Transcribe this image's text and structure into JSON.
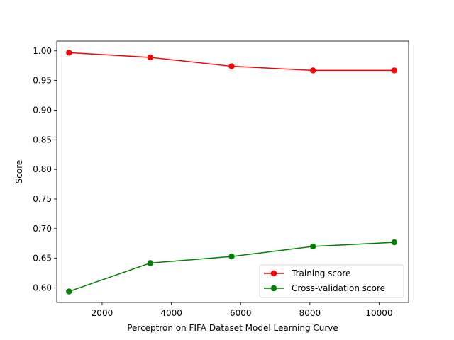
{
  "chart_data": {
    "type": "line",
    "title": "",
    "xlabel": "Perceptron on FIFA Dataset Model Learning Curve",
    "ylabel": "Score",
    "xlim": [
      690,
      10850
    ],
    "ylim": [
      0.5755,
      1.0165
    ],
    "xticks": [
      2000,
      4000,
      6000,
      8000,
      10000
    ],
    "xtick_labels": [
      "2000",
      "4000",
      "6000",
      "8000",
      "10000"
    ],
    "yticks": [
      0.6,
      0.65,
      0.7,
      0.75,
      0.8,
      0.85,
      0.9,
      0.95,
      1.0
    ],
    "ytick_labels": [
      "0.60",
      "0.65",
      "0.70",
      "0.75",
      "0.80",
      "0.85",
      "0.90",
      "0.95",
      "1.00"
    ],
    "grid": false,
    "legend_position": "lower-right",
    "series": [
      {
        "name": "Training score",
        "color": "#ff0000",
        "marker": "circle",
        "x": [
          1045,
          3390,
          5740,
          8090,
          10435
        ],
        "y": [
          0.997,
          0.989,
          0.974,
          0.967,
          0.967
        ]
      },
      {
        "name": "Cross-validation score",
        "color": "#008000",
        "marker": "circle",
        "x": [
          1045,
          3390,
          5740,
          8090,
          10435
        ],
        "y": [
          0.594,
          0.642,
          0.653,
          0.67,
          0.677
        ]
      }
    ]
  }
}
